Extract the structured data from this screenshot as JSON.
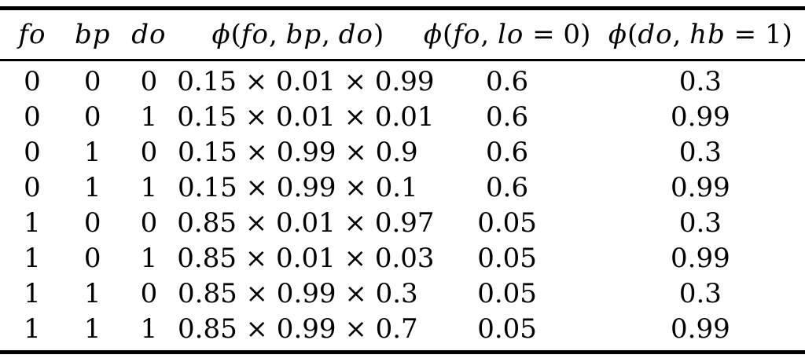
{
  "colors": {
    "background": "#ffffff",
    "text": "#000000",
    "rule": "#000000"
  },
  "table": {
    "headers": [
      "fo",
      "bp",
      "do",
      "ϕ(fo, bp, do)",
      "ϕ(fo, lo = 0)",
      "ϕ(do, hb = 1)"
    ],
    "rows": [
      [
        "0",
        "0",
        "0",
        "0.15 × 0.01 × 0.99",
        "0.6",
        "0.3"
      ],
      [
        "0",
        "0",
        "1",
        "0.15 × 0.01 × 0.01",
        "0.6",
        "0.99"
      ],
      [
        "0",
        "1",
        "0",
        "0.15 × 0.99 × 0.9",
        "0.6",
        "0.3"
      ],
      [
        "0",
        "1",
        "1",
        "0.15 × 0.99 × 0.1",
        "0.6",
        "0.99"
      ],
      [
        "1",
        "0",
        "0",
        "0.85 × 0.01 × 0.97",
        "0.05",
        "0.3"
      ],
      [
        "1",
        "0",
        "1",
        "0.85 × 0.01 × 0.03",
        "0.05",
        "0.99"
      ],
      [
        "1",
        "1",
        "0",
        "0.85 × 0.99 × 0.3",
        "0.05",
        "0.3"
      ],
      [
        "1",
        "1",
        "1",
        "0.85 × 0.99 × 0.7",
        "0.05",
        "0.99"
      ]
    ]
  }
}
